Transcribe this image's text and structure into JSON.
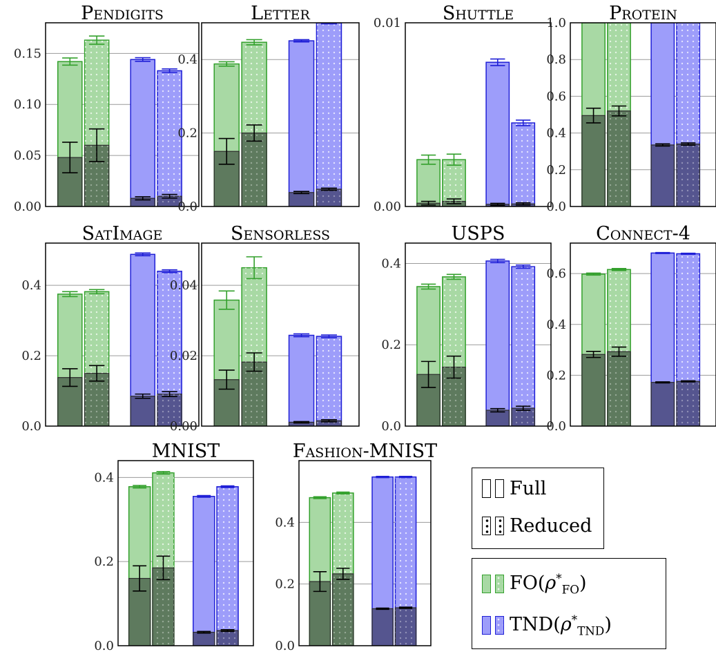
{
  "style": {
    "fo_light": "#a8d9a4",
    "fo_edge": "#33a02c",
    "fo_dark": "#5e7a5e",
    "tnd_light": "#9d9dfa",
    "tnd_edge": "#1f1fd6",
    "tnd_dark": "#55558f",
    "grid": "#9a9a9a",
    "err_dark": "#000000"
  },
  "legend": {
    "full_label": "Full",
    "reduced_label": "Reduced",
    "fo_label_main": "FO",
    "fo_label_sub": "FO",
    "tnd_label_main": "TND",
    "tnd_label_sub": "TND"
  },
  "chart_data": [
    {
      "title": "Pendigits",
      "type": "bar",
      "ylim": [
        0,
        0.18
      ],
      "yticks": [
        0.0,
        0.05,
        0.1,
        0.15
      ],
      "ytick_labels": [
        "0.00",
        "0.05",
        "0.10",
        "0.15"
      ],
      "series": [
        {
          "method": "FO",
          "variant": "Full",
          "bound": 0.142,
          "bound_err": 0.0035,
          "loss": 0.048,
          "loss_err": 0.015
        },
        {
          "method": "FO",
          "variant": "Reduced",
          "bound": 0.163,
          "bound_err": 0.004,
          "loss": 0.06,
          "loss_err": 0.016
        },
        {
          "method": "TND",
          "variant": "Full",
          "bound": 0.144,
          "bound_err": 0.0018,
          "loss": 0.008,
          "loss_err": 0.0015
        },
        {
          "method": "TND",
          "variant": "Reduced",
          "bound": 0.133,
          "bound_err": 0.0018,
          "loss": 0.01,
          "loss_err": 0.0018
        }
      ]
    },
    {
      "title": "Letter",
      "type": "bar",
      "ylim": [
        0,
        0.5
      ],
      "yticks": [
        0.0,
        0.2,
        0.4
      ],
      "ytick_labels": [
        "0.0",
        "0.2",
        "0.4"
      ],
      "series": [
        {
          "method": "FO",
          "variant": "Full",
          "bound": 0.388,
          "bound_err": 0.006,
          "loss": 0.15,
          "loss_err": 0.035
        },
        {
          "method": "FO",
          "variant": "Reduced",
          "bound": 0.447,
          "bound_err": 0.007,
          "loss": 0.2,
          "loss_err": 0.022
        },
        {
          "method": "TND",
          "variant": "Full",
          "bound": 0.451,
          "bound_err": 0.003,
          "loss": 0.038,
          "loss_err": 0.003
        },
        {
          "method": "TND",
          "variant": "Reduced",
          "bound": 0.5,
          "bound_err": 0.003,
          "loss": 0.047,
          "loss_err": 0.003
        }
      ]
    },
    {
      "title": "Shuttle",
      "type": "bar",
      "ylim": [
        0,
        0.01
      ],
      "yticks": [
        0.0,
        0.01
      ],
      "ytick_labels": [
        "0.00",
        "0.01"
      ],
      "series": [
        {
          "method": "FO",
          "variant": "Full",
          "bound": 0.00255,
          "bound_err": 0.00025,
          "loss": 0.00018,
          "loss_err": 0.0001
        },
        {
          "method": "FO",
          "variant": "Reduced",
          "bound": 0.00255,
          "bound_err": 0.0003,
          "loss": 0.00028,
          "loss_err": 0.00013
        },
        {
          "method": "TND",
          "variant": "Full",
          "bound": 0.00785,
          "bound_err": 0.00018,
          "loss": 0.00012,
          "loss_err": 5e-05
        },
        {
          "method": "TND",
          "variant": "Reduced",
          "bound": 0.00455,
          "bound_err": 0.00015,
          "loss": 0.00014,
          "loss_err": 6e-05
        }
      ]
    },
    {
      "title": "Protein",
      "type": "bar",
      "ylim": [
        0,
        1.0
      ],
      "yticks": [
        0.0,
        0.2,
        0.4,
        0.6,
        0.8,
        1.0
      ],
      "ytick_labels": [
        "0.0",
        "0.2",
        "0.4",
        "0.6",
        "0.8",
        "1.0"
      ],
      "series": [
        {
          "method": "FO",
          "variant": "Full",
          "bound": 1.0,
          "bound_err": 0,
          "loss": 0.495,
          "loss_err": 0.04
        },
        {
          "method": "FO",
          "variant": "Reduced",
          "bound": 1.0,
          "bound_err": 0,
          "loss": 0.52,
          "loss_err": 0.027
        },
        {
          "method": "TND",
          "variant": "Full",
          "bound": 1.0,
          "bound_err": 0,
          "loss": 0.335,
          "loss_err": 0.006
        },
        {
          "method": "TND",
          "variant": "Reduced",
          "bound": 1.0,
          "bound_err": 0,
          "loss": 0.34,
          "loss_err": 0.006
        }
      ]
    },
    {
      "title": "SatImage",
      "type": "bar",
      "ylim": [
        0,
        0.52
      ],
      "yticks": [
        0.0,
        0.2,
        0.4
      ],
      "ytick_labels": [
        "0.0",
        "0.2",
        "0.4"
      ],
      "series": [
        {
          "method": "FO",
          "variant": "Full",
          "bound": 0.375,
          "bound_err": 0.007,
          "loss": 0.138,
          "loss_err": 0.025
        },
        {
          "method": "FO",
          "variant": "Reduced",
          "bound": 0.382,
          "bound_err": 0.006,
          "loss": 0.15,
          "loss_err": 0.022
        },
        {
          "method": "TND",
          "variant": "Full",
          "bound": 0.488,
          "bound_err": 0.004,
          "loss": 0.085,
          "loss_err": 0.006
        },
        {
          "method": "TND",
          "variant": "Reduced",
          "bound": 0.44,
          "bound_err": 0.004,
          "loss": 0.091,
          "loss_err": 0.007
        }
      ]
    },
    {
      "title": "Sensorless",
      "type": "bar",
      "ylim": [
        0,
        0.052
      ],
      "yticks": [
        0.0,
        0.02,
        0.04
      ],
      "ytick_labels": [
        "0.00",
        "0.02",
        "0.04"
      ],
      "series": [
        {
          "method": "FO",
          "variant": "Full",
          "bound": 0.0358,
          "bound_err": 0.0026,
          "loss": 0.0132,
          "loss_err": 0.0027
        },
        {
          "method": "FO",
          "variant": "Reduced",
          "bound": 0.045,
          "bound_err": 0.0031,
          "loss": 0.0182,
          "loss_err": 0.0026
        },
        {
          "method": "TND",
          "variant": "Full",
          "bound": 0.0258,
          "bound_err": 0.0004,
          "loss": 0.0011,
          "loss_err": 0.0002
        },
        {
          "method": "TND",
          "variant": "Reduced",
          "bound": 0.0255,
          "bound_err": 0.0004,
          "loss": 0.0015,
          "loss_err": 0.0003
        }
      ]
    },
    {
      "title": "USPS",
      "type": "bar",
      "ylim": [
        0,
        0.45
      ],
      "yticks": [
        0.0,
        0.2,
        0.4
      ],
      "ytick_labels": [
        "0.0",
        "0.2",
        "0.4"
      ],
      "series": [
        {
          "method": "FO",
          "variant": "Full",
          "bound": 0.343,
          "bound_err": 0.006,
          "loss": 0.127,
          "loss_err": 0.032
        },
        {
          "method": "FO",
          "variant": "Reduced",
          "bound": 0.367,
          "bound_err": 0.006,
          "loss": 0.145,
          "loss_err": 0.027
        },
        {
          "method": "TND",
          "variant": "Full",
          "bound": 0.406,
          "bound_err": 0.004,
          "loss": 0.039,
          "loss_err": 0.004
        },
        {
          "method": "TND",
          "variant": "Reduced",
          "bound": 0.392,
          "bound_err": 0.004,
          "loss": 0.044,
          "loss_err": 0.005
        }
      ]
    },
    {
      "title": "Connect-4",
      "type": "bar",
      "ylim": [
        0,
        0.72
      ],
      "yticks": [
        0.0,
        0.2,
        0.4,
        0.6
      ],
      "ytick_labels": [
        "0.0",
        "0.2",
        "0.4",
        "0.6"
      ],
      "series": [
        {
          "method": "FO",
          "variant": "Full",
          "bound": 0.598,
          "bound_err": 0.004,
          "loss": 0.282,
          "loss_err": 0.012
        },
        {
          "method": "FO",
          "variant": "Reduced",
          "bound": 0.616,
          "bound_err": 0.004,
          "loss": 0.293,
          "loss_err": 0.018
        },
        {
          "method": "TND",
          "variant": "Full",
          "bound": 0.681,
          "bound_err": 0.002,
          "loss": 0.172,
          "loss_err": 0.002
        },
        {
          "method": "TND",
          "variant": "Reduced",
          "bound": 0.678,
          "bound_err": 0.002,
          "loss": 0.176,
          "loss_err": 0.002
        }
      ]
    },
    {
      "title": "MNIST",
      "type": "bar",
      "ylim": [
        0,
        0.44
      ],
      "yticks": [
        0.0,
        0.2,
        0.4
      ],
      "ytick_labels": [
        "0.0",
        "0.2",
        "0.4"
      ],
      "series": [
        {
          "method": "FO",
          "variant": "Full",
          "bound": 0.378,
          "bound_err": 0.003,
          "loss": 0.16,
          "loss_err": 0.03
        },
        {
          "method": "FO",
          "variant": "Reduced",
          "bound": 0.411,
          "bound_err": 0.003,
          "loss": 0.185,
          "loss_err": 0.028
        },
        {
          "method": "TND",
          "variant": "Full",
          "bound": 0.355,
          "bound_err": 0.002,
          "loss": 0.032,
          "loss_err": 0.002
        },
        {
          "method": "TND",
          "variant": "Reduced",
          "bound": 0.378,
          "bound_err": 0.002,
          "loss": 0.036,
          "loss_err": 0.002
        }
      ]
    },
    {
      "title": "Fashion-MNIST",
      "type": "bar",
      "ylim": [
        0,
        0.6
      ],
      "yticks": [
        0.0,
        0.2,
        0.4
      ],
      "ytick_labels": [
        "0.0",
        "0.2",
        "0.4"
      ],
      "series": [
        {
          "method": "FO",
          "variant": "Full",
          "bound": 0.48,
          "bound_err": 0.003,
          "loss": 0.208,
          "loss_err": 0.032
        },
        {
          "method": "FO",
          "variant": "Reduced",
          "bound": 0.495,
          "bound_err": 0.003,
          "loss": 0.233,
          "loss_err": 0.018
        },
        {
          "method": "TND",
          "variant": "Full",
          "bound": 0.547,
          "bound_err": 0.002,
          "loss": 0.12,
          "loss_err": 0.002
        },
        {
          "method": "TND",
          "variant": "Reduced",
          "bound": 0.547,
          "bound_err": 0.002,
          "loss": 0.123,
          "loss_err": 0.002
        }
      ]
    }
  ]
}
